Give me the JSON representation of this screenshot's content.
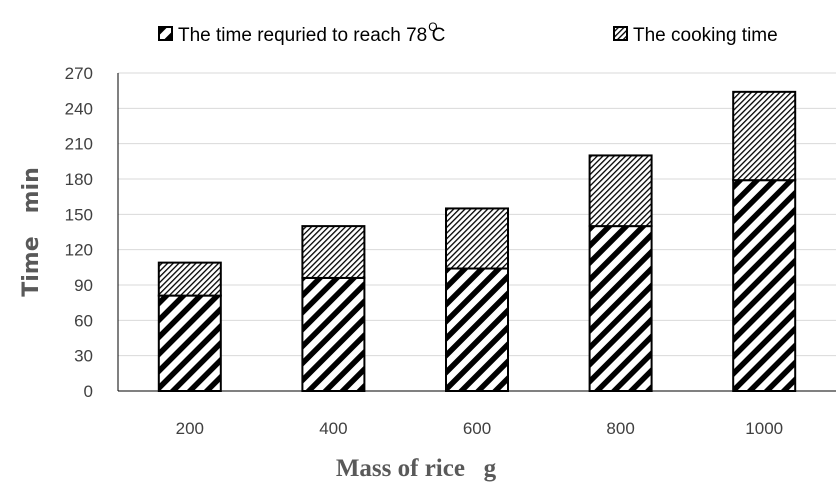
{
  "chart_data": {
    "type": "bar",
    "stacked": true,
    "categories": [
      "200",
      "400",
      "600",
      "800",
      "1000"
    ],
    "series": [
      {
        "name": "The time requried to reach 78",
        "values": [
          81,
          96,
          104,
          140,
          179
        ],
        "pattern": "wide-hatch"
      },
      {
        "name": "The cooking time",
        "values": [
          28,
          44,
          51,
          60,
          75
        ],
        "pattern": "fine-hatch"
      }
    ],
    "legend_suffix": {
      "superscript": "O",
      "unit": "C"
    },
    "title": "",
    "xlabel": "Mass of rice   g",
    "ylabel": "Time   min",
    "ylim": [
      0,
      270
    ],
    "yticks": [
      0,
      30,
      60,
      90,
      120,
      150,
      180,
      210,
      240,
      270
    ],
    "grid": true,
    "legend_position": "top",
    "colors": {
      "bar_stroke": "#000000",
      "grid": "#d9d9d9",
      "axis": "#000000",
      "axis_text": "#595959"
    }
  }
}
